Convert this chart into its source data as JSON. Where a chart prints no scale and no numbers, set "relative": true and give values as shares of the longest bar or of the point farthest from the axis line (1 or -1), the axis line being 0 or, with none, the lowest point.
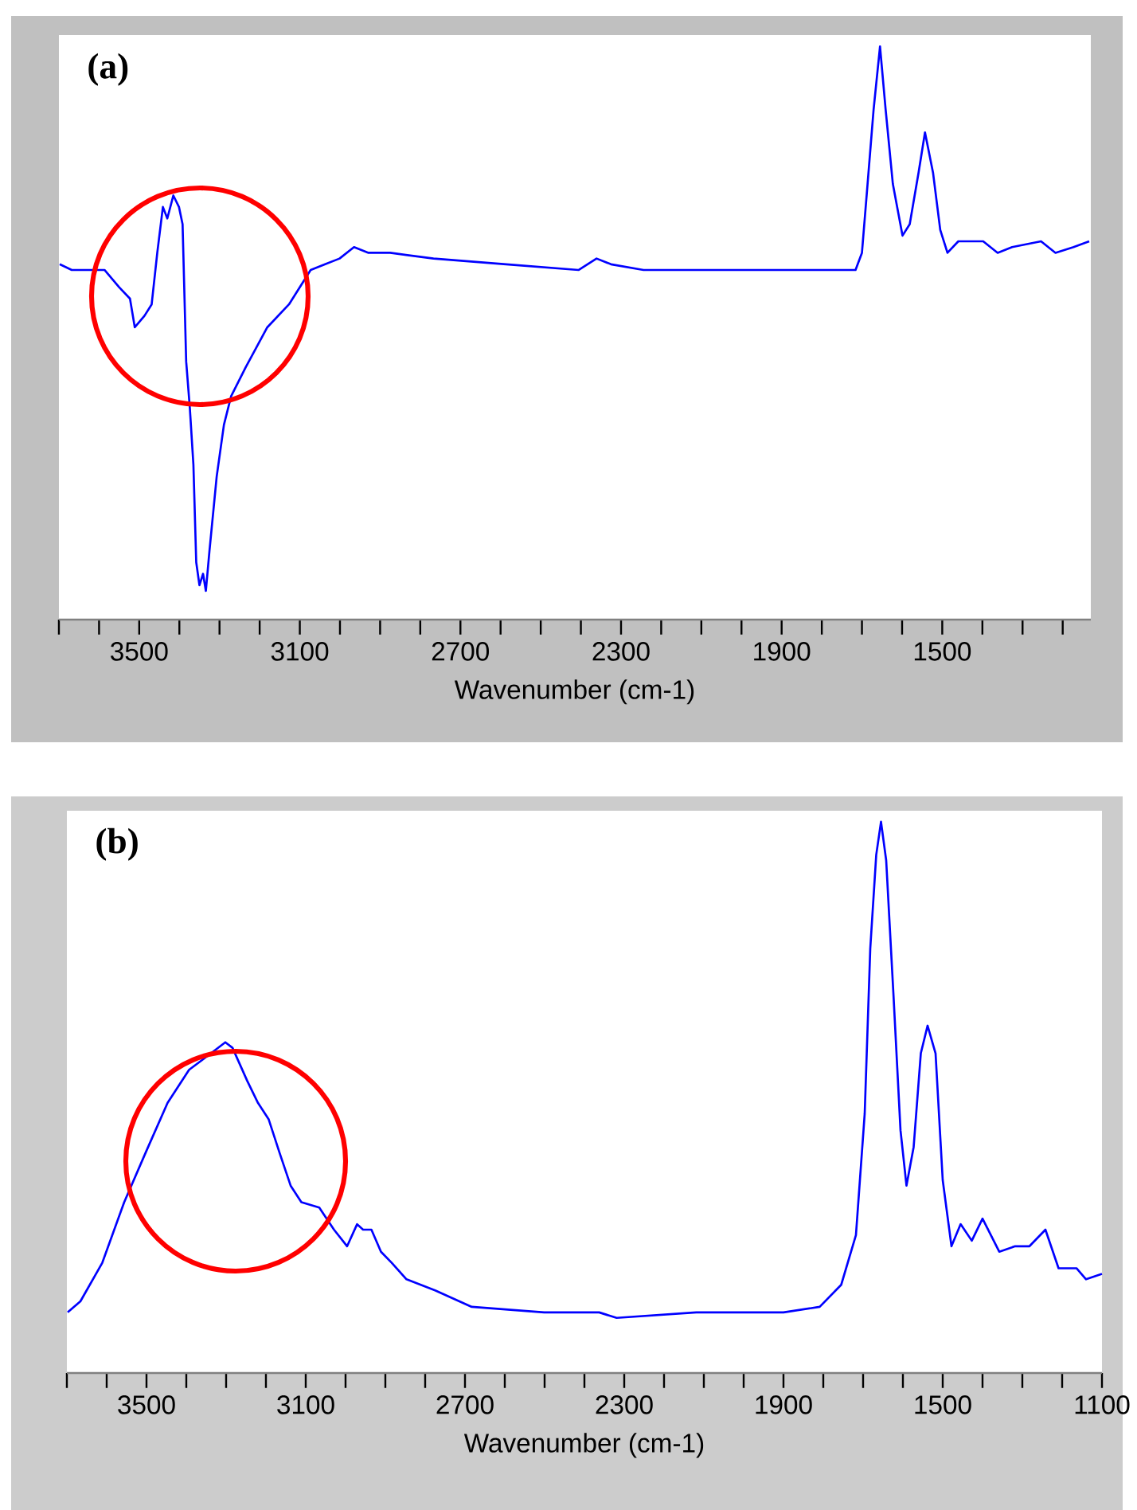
{
  "chart_data": [
    {
      "type": "line",
      "title": "(a)",
      "xlabel": "Wavenumber (cm-1)",
      "relative": true,
      "tick_labels": "x",
      "xlim": [
        3700,
        1130
      ],
      "xticks": [
        {
          "value": 3700,
          "label": null
        },
        {
          "value": 3600,
          "label": null
        },
        3500,
        {
          "value": 3400,
          "label": null
        },
        {
          "value": 3300,
          "label": null
        },
        {
          "value": 3200,
          "label": null
        },
        3100,
        {
          "value": 3000,
          "label": null
        },
        {
          "value": 2900,
          "label": null
        },
        {
          "value": 2800,
          "label": null
        },
        2700,
        {
          "value": 2600,
          "label": null
        },
        {
          "value": 2500,
          "label": null
        },
        {
          "value": 2400,
          "label": null
        },
        2300,
        {
          "value": 2200,
          "label": null
        },
        {
          "value": 2100,
          "label": null
        },
        {
          "value": 2000,
          "label": null
        },
        1900,
        {
          "value": 1800,
          "label": null
        },
        {
          "value": 1700,
          "label": null
        },
        {
          "value": 1600,
          "label": null
        },
        1500,
        {
          "value": 1400,
          "label": null
        },
        {
          "value": 1300,
          "label": null
        },
        {
          "value": 1200,
          "label": null
        }
      ],
      "x": [
        3698,
        3668,
        3623,
        3586,
        3550,
        3523,
        3511,
        3487,
        3469,
        3455,
        3441,
        3430,
        3415,
        3401,
        3392,
        3383,
        3374,
        3365,
        3358,
        3350,
        3341,
        3334,
        3325,
        3307,
        3289,
        3271,
        3235,
        3181,
        3127,
        3073,
        3037,
        3001,
        2965,
        2929,
        2875,
        2767,
        2586,
        2406,
        2361,
        2325,
        2244,
        2118,
        1866,
        1716,
        1700,
        1686,
        1671,
        1655,
        1641,
        1623,
        1599,
        1581,
        1559,
        1543,
        1523,
        1505,
        1487,
        1460,
        1425,
        1398,
        1362,
        1326,
        1254,
        1218,
        1173,
        1134
      ],
      "series": [
        {
          "color": "#0000ff",
          "values": [
            0.62,
            0.61,
            0.61,
            0.61,
            0.58,
            0.56,
            0.51,
            0.53,
            0.55,
            0.64,
            0.72,
            0.7,
            0.74,
            0.72,
            0.69,
            0.45,
            0.37,
            0.27,
            0.1,
            0.06,
            0.08,
            0.05,
            0.12,
            0.25,
            0.34,
            0.39,
            0.44,
            0.51,
            0.55,
            0.61,
            0.62,
            0.63,
            0.65,
            0.64,
            0.64,
            0.63,
            0.62,
            0.61,
            0.63,
            0.62,
            0.61,
            0.61,
            0.61,
            0.61,
            0.64,
            0.76,
            0.89,
            1.0,
            0.89,
            0.76,
            0.67,
            0.69,
            0.78,
            0.85,
            0.78,
            0.68,
            0.64,
            0.66,
            0.66,
            0.66,
            0.64,
            0.65,
            0.66,
            0.64,
            0.65,
            0.66
          ]
        }
      ]
    },
    {
      "type": "line",
      "title": "(b)",
      "xlabel": "Wavenumber (cm-1)",
      "relative": true,
      "tick_labels": "x",
      "xlim": [
        3700,
        1100
      ],
      "xticks": [
        {
          "value": 3700,
          "label": null
        },
        {
          "value": 3600,
          "label": null
        },
        3500,
        {
          "value": 3400,
          "label": null
        },
        {
          "value": 3300,
          "label": null
        },
        {
          "value": 3200,
          "label": null
        },
        3100,
        {
          "value": 3000,
          "label": null
        },
        {
          "value": 2900,
          "label": null
        },
        {
          "value": 2800,
          "label": null
        },
        2700,
        {
          "value": 2600,
          "label": null
        },
        {
          "value": 2500,
          "label": null
        },
        {
          "value": 2400,
          "label": null
        },
        2300,
        {
          "value": 2200,
          "label": null
        },
        {
          "value": 2100,
          "label": null
        },
        {
          "value": 2000,
          "label": null
        },
        1900,
        {
          "value": 1800,
          "label": null
        },
        {
          "value": 1700,
          "label": null
        },
        {
          "value": 1600,
          "label": null
        },
        1500,
        {
          "value": 1400,
          "label": null
        },
        {
          "value": 1300,
          "label": null
        },
        {
          "value": 1200,
          "label": null
        },
        1100
      ],
      "x": [
        3698,
        3666,
        3611,
        3556,
        3502,
        3447,
        3393,
        3338,
        3302,
        3284,
        3247,
        3220,
        3193,
        3166,
        3138,
        3111,
        3066,
        3029,
        2996,
        2971,
        2956,
        2935,
        2911,
        2884,
        2847,
        2775,
        2683,
        2501,
        2363,
        2319,
        2119,
        1900,
        1809,
        1755,
        1718,
        1696,
        1682,
        1667,
        1655,
        1642,
        1624,
        1606,
        1591,
        1573,
        1555,
        1538,
        1518,
        1500,
        1478,
        1455,
        1427,
        1400,
        1358,
        1318,
        1282,
        1242,
        1209,
        1164,
        1140,
        1100
      ],
      "series": [
        {
          "color": "#0000ff",
          "values": [
            0.11,
            0.13,
            0.2,
            0.31,
            0.4,
            0.49,
            0.55,
            0.58,
            0.6,
            0.59,
            0.53,
            0.49,
            0.46,
            0.4,
            0.34,
            0.31,
            0.3,
            0.26,
            0.23,
            0.27,
            0.26,
            0.26,
            0.22,
            0.2,
            0.17,
            0.15,
            0.12,
            0.11,
            0.11,
            0.1,
            0.11,
            0.11,
            0.12,
            0.16,
            0.25,
            0.47,
            0.77,
            0.94,
            1.0,
            0.93,
            0.69,
            0.44,
            0.34,
            0.41,
            0.58,
            0.63,
            0.58,
            0.35,
            0.23,
            0.27,
            0.24,
            0.28,
            0.22,
            0.23,
            0.23,
            0.26,
            0.19,
            0.19,
            0.17,
            0.18
          ]
        }
      ]
    }
  ]
}
